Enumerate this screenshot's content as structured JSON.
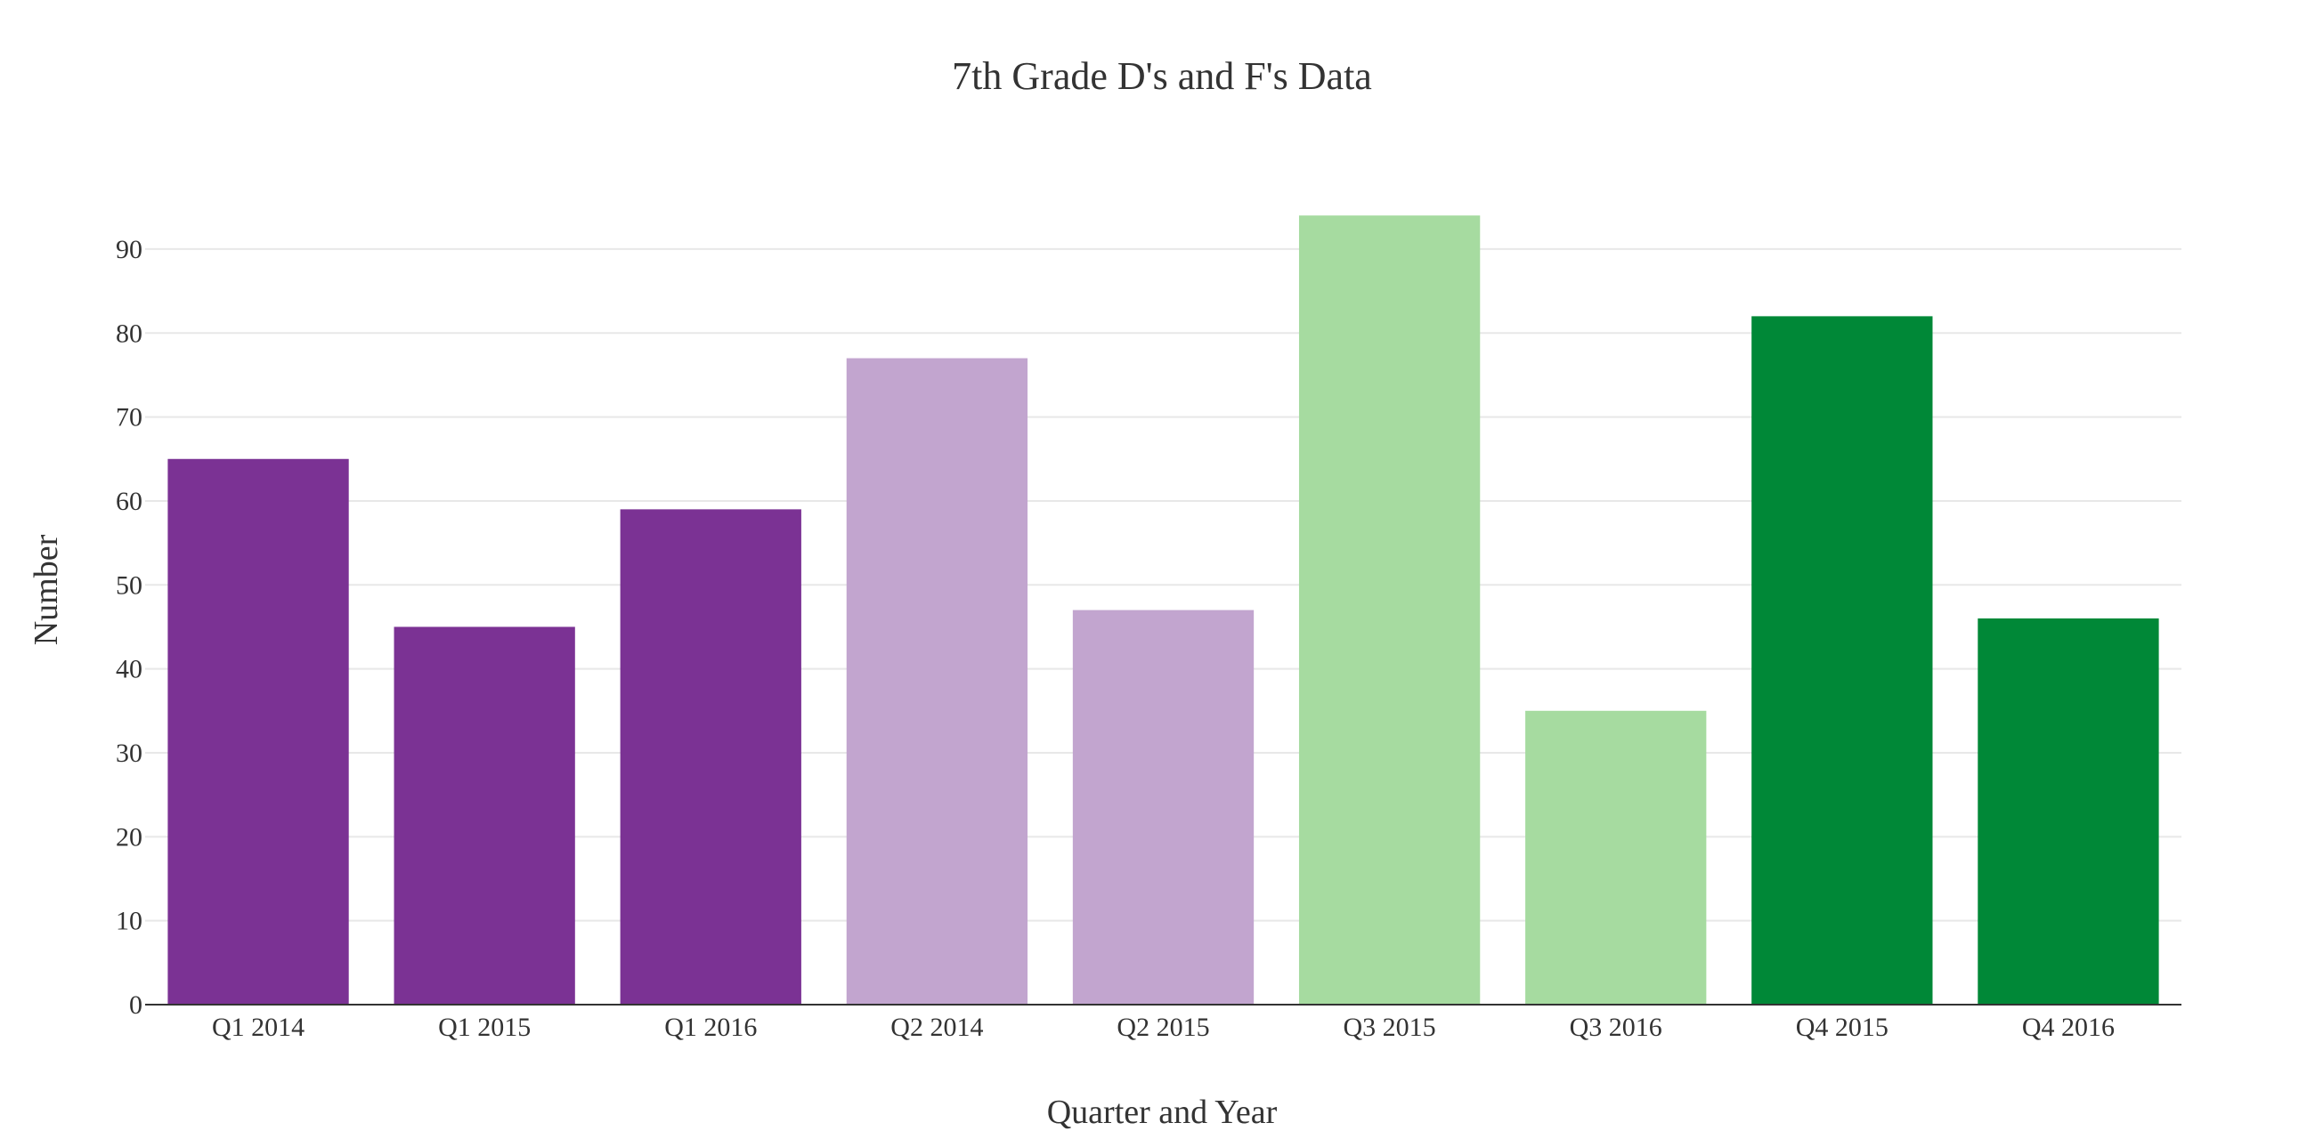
{
  "chart_data": {
    "type": "bar",
    "title": "7th Grade D's and F's Data",
    "xlabel": "Quarter and Year",
    "ylabel": "Number",
    "categories": [
      "Q1 2014",
      "Q1 2015",
      "Q1 2016",
      "Q2 2014",
      "Q2 2015",
      "Q3 2015",
      "Q3 2016",
      "Q4 2015",
      "Q4 2016"
    ],
    "values": [
      65,
      45,
      59,
      77,
      47,
      94,
      35,
      82,
      46
    ],
    "bar_colors": [
      "#7b3294",
      "#7b3294",
      "#7b3294",
      "#c2a5cf",
      "#c2a5cf",
      "#a6dba0",
      "#a6dba0",
      "#008837",
      "#008837"
    ],
    "yticks": [
      0,
      10,
      20,
      30,
      40,
      50,
      60,
      70,
      80,
      90
    ],
    "ylim": [
      0,
      99
    ],
    "grid": true,
    "legend": false
  }
}
